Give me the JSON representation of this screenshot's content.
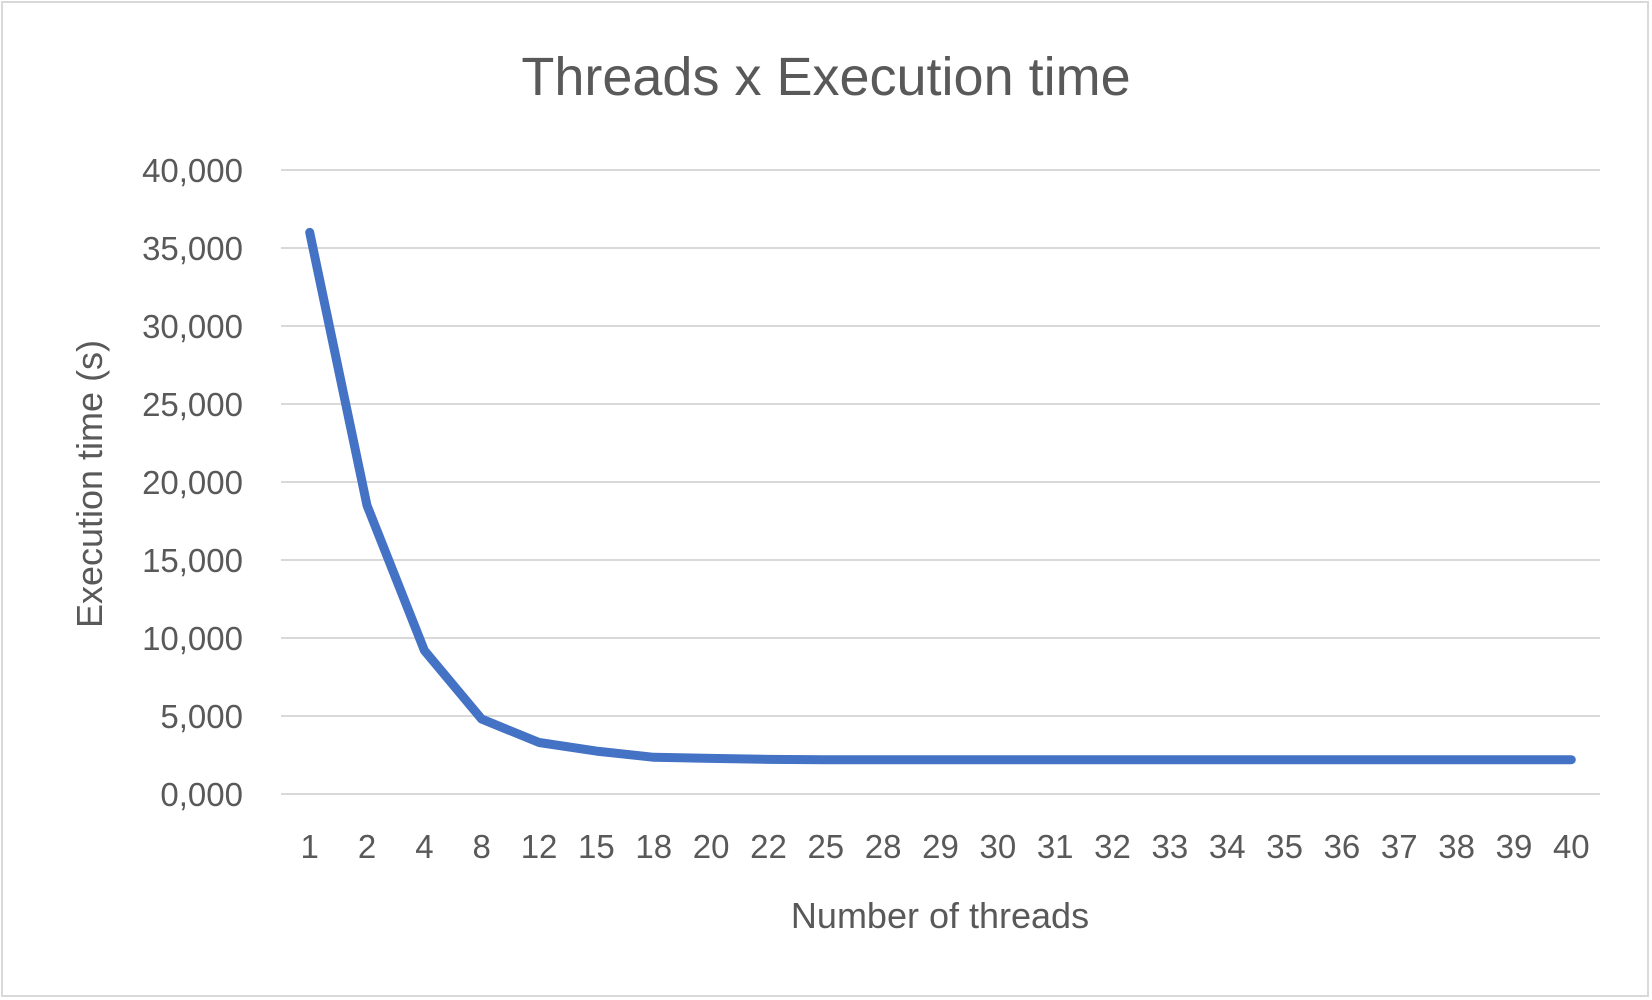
{
  "chart_data": {
    "type": "line",
    "title": "Threads x Execution time",
    "xlabel": "Number of threads",
    "ylabel": "Execution time (s)",
    "categories": [
      "1",
      "2",
      "4",
      "8",
      "12",
      "15",
      "18",
      "20",
      "22",
      "25",
      "28",
      "29",
      "30",
      "31",
      "32",
      "33",
      "34",
      "35",
      "36",
      "37",
      "38",
      "39",
      "40"
    ],
    "series": [
      {
        "values": [
          36000,
          18500,
          9200,
          4800,
          3300,
          2750,
          2350,
          2280,
          2220,
          2200,
          2200,
          2200,
          2200,
          2200,
          2200,
          2200,
          2200,
          2200,
          2200,
          2200,
          2200,
          2200,
          2200
        ],
        "color": "#4472c4"
      }
    ],
    "ylim": [
      0,
      40000
    ],
    "yticks": [
      0,
      5000,
      10000,
      15000,
      20000,
      25000,
      30000,
      35000,
      40000
    ],
    "ytick_labels": [
      "0,000",
      "5,000",
      "10,000",
      "15,000",
      "20,000",
      "25,000",
      "30,000",
      "35,000",
      "40,000"
    ],
    "grid": true,
    "legend": "none"
  }
}
